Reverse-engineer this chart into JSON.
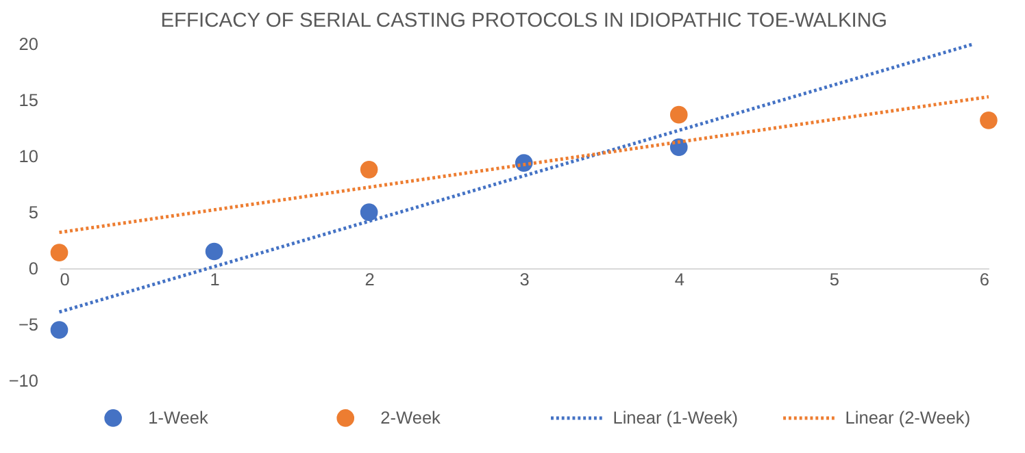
{
  "chart_data": {
    "type": "scatter",
    "title": "EFFICACY OF SERIAL CASTING PROTOCOLS IN IDIOPATHIC TOE-WALKING",
    "series": [
      {
        "name": "1-Week",
        "color": "#4472c4",
        "marker": "circle",
        "x": [
          0,
          1,
          2,
          3,
          4
        ],
        "values": [
          -5.5,
          1.5,
          5.0,
          9.4,
          10.8
        ]
      },
      {
        "name": "2-Week",
        "color": "#ed7d31",
        "marker": "circle",
        "x": [
          0,
          2,
          4,
          6
        ],
        "values": [
          1.4,
          8.8,
          13.7,
          13.2
        ]
      },
      {
        "name": "Linear (1-Week)",
        "color": "#4472c4",
        "type": "line",
        "line_style": "dotted",
        "x": [
          0,
          5.9
        ],
        "values": [
          -3.9,
          20
        ]
      },
      {
        "name": "Linear (2-Week)",
        "color": "#ed7d31",
        "type": "line",
        "line_style": "dotted",
        "x": [
          0,
          6
        ],
        "values": [
          3.2,
          15.3
        ]
      }
    ],
    "xlim": [
      0,
      6
    ],
    "xticks": [
      0,
      1,
      2,
      3,
      4,
      5,
      6
    ],
    "ylim": [
      -10,
      20
    ],
    "yticks": [
      -10,
      -5,
      0,
      5,
      10,
      15,
      20
    ],
    "legend": "bottom"
  }
}
